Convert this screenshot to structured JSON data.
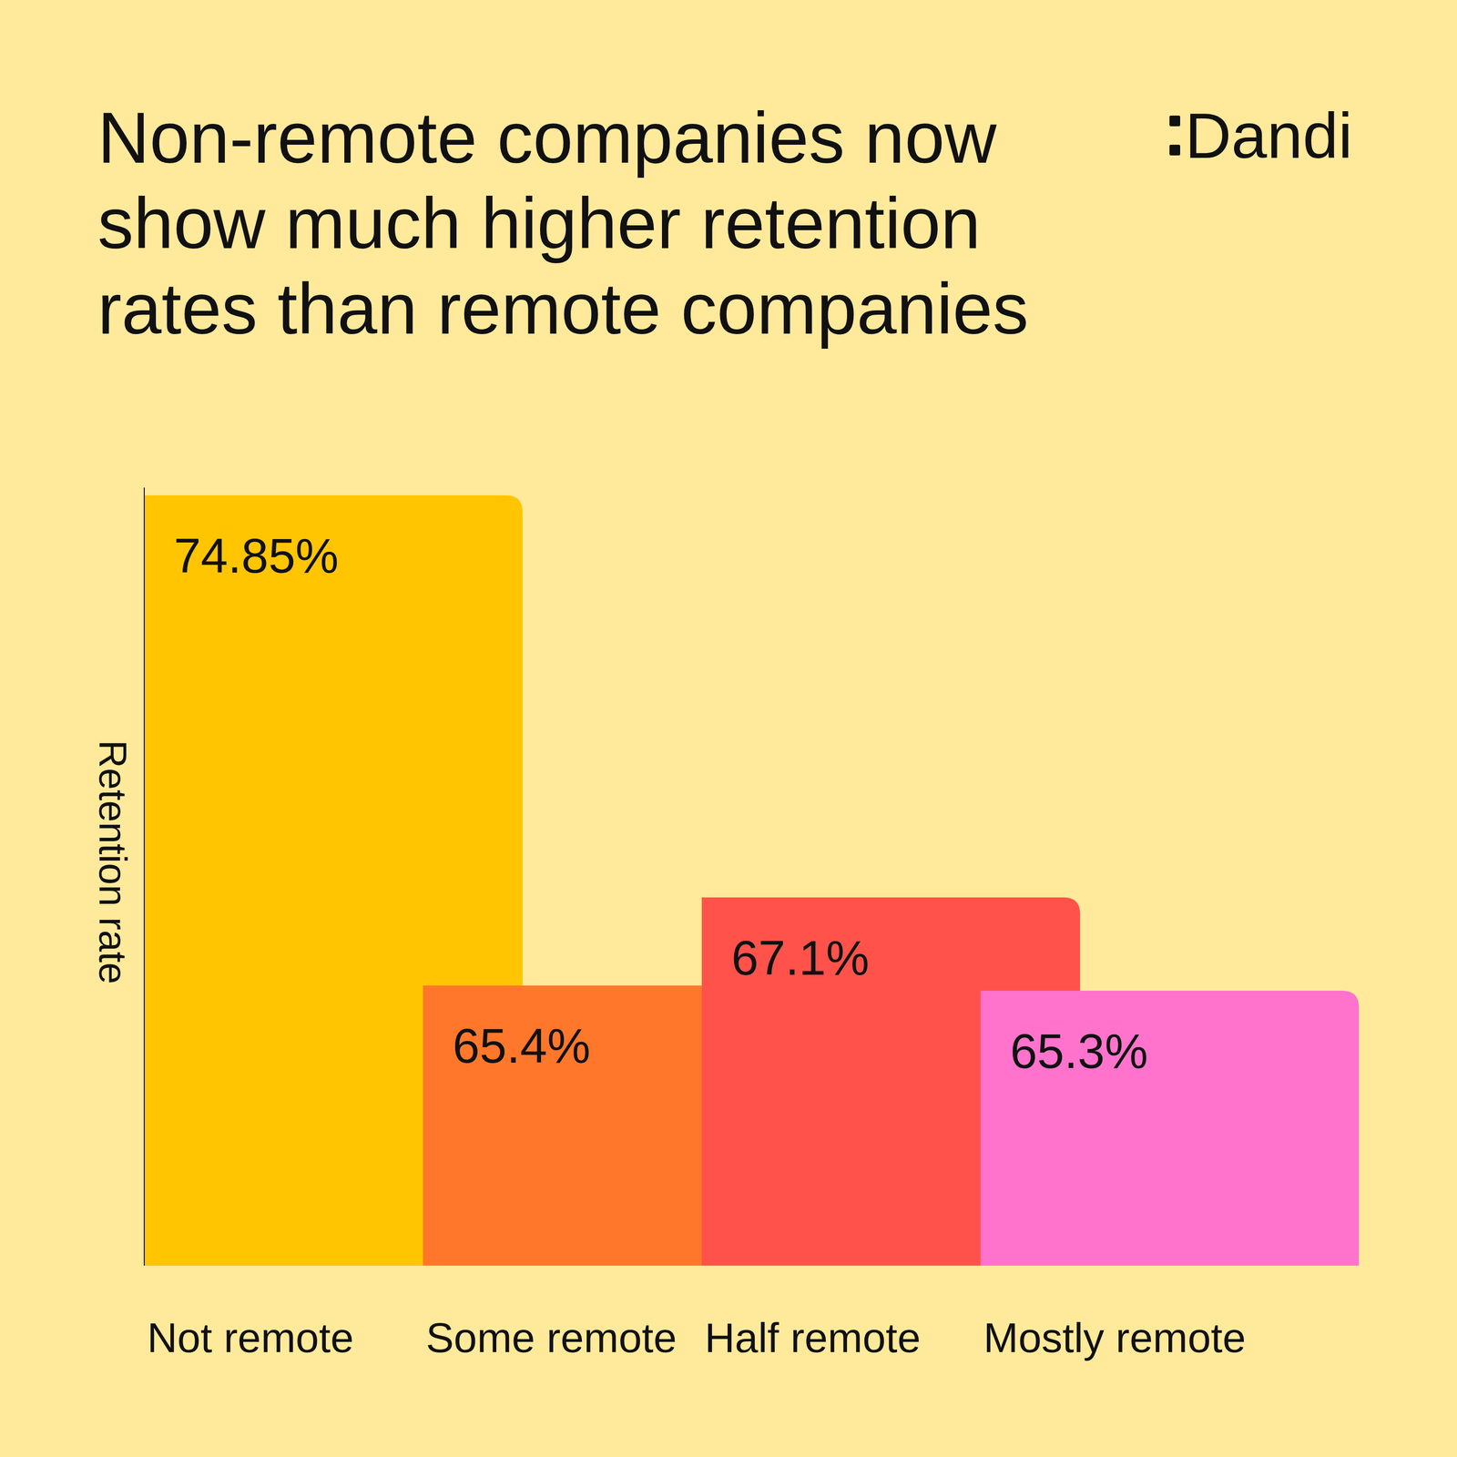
{
  "chart_data": {
    "type": "bar",
    "title": "Non-remote companies now show much higher retention rates than remote companies",
    "annotations": [
      "Dandi"
    ],
    "y_label": "Retention rate",
    "categories": [
      "Not remote",
      "Some remote",
      "Half remote",
      "Mostly remote"
    ],
    "values": [
      74.85,
      65.4,
      67.1,
      65.3
    ],
    "value_labels": [
      "74.85%",
      "65.4%",
      "67.1%",
      "65.3%"
    ],
    "colors": [
      "#ffc501",
      "#ff772a",
      "#ff524a",
      "#ff73cd"
    ],
    "ylim": [
      60,
      75
    ],
    "yticks": [
      60,
      75
    ],
    "data_labels": true,
    "tick_labels": "x",
    "grid": false
  }
}
